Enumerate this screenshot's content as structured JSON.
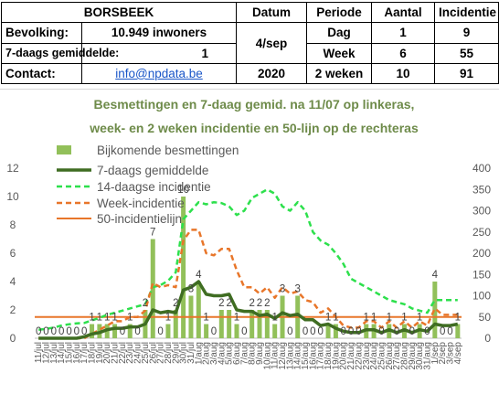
{
  "header": {
    "town": "BORSBEEK",
    "col_datum": "Datum",
    "col_periode": "Periode",
    "col_aantal": "Aantal",
    "col_incidentie": "Incidentie",
    "bevolking_label": "Bevolking:",
    "bevolking_value": "10.949 inwoners",
    "gemiddelde_label": "7-daags gemiddelde:",
    "gemiddelde_value": "1",
    "contact_label": "Contact:",
    "contact_value": "info@npdata.be",
    "datum_value": "4/sep",
    "year_value": "2020",
    "rows": [
      {
        "periode": "Dag",
        "aantal": "1",
        "incidentie": "9"
      },
      {
        "periode": "Week",
        "aantal": "6",
        "incidentie": "55"
      },
      {
        "periode": "2 weken",
        "aantal": "10",
        "incidentie": "91"
      }
    ]
  },
  "chart_data": {
    "type": "bar",
    "title_line1": "Besmettingen en 7-daag gemid. na 11/07 op linkeras,",
    "title_line2": "week- en 2 weken incidentie en 50-lijn op de rechteras",
    "legend": {
      "bars": "Bijkomende besmettingen",
      "avg7": "7-daags gemiddelde",
      "inc14": "14-daagse incidentie",
      "inc7": "Week-incidentie",
      "line50": "50-incidentielijn"
    },
    "y_left": {
      "min": 0,
      "max": 12,
      "ticks": [
        "0",
        "2",
        "4",
        "6",
        "8",
        "10",
        "12"
      ]
    },
    "y_right": {
      "min": 0,
      "max": 400,
      "ticks": [
        "0",
        "50",
        "100",
        "150",
        "200",
        "250",
        "300",
        "350",
        "400"
      ]
    },
    "categories": [
      "11/jul",
      "12/jul",
      "13/jul",
      "14/jul",
      "15/jul",
      "16/jul",
      "17/jul",
      "18/jul",
      "19/jul",
      "20/jul",
      "21/jul",
      "22/jul",
      "23/jul",
      "24/jul",
      "25/jul",
      "26/jul",
      "27/jul",
      "28/jul",
      "29/jul",
      "30/jul",
      "31/jul",
      "1/aug",
      "2/aug",
      "3/aug",
      "4/aug",
      "5/aug",
      "6/aug",
      "7/aug",
      "8/aug",
      "9/aug",
      "10/aug",
      "11/aug",
      "12/aug",
      "13/aug",
      "14/aug",
      "15/aug",
      "16/aug",
      "17/aug",
      "18/aug",
      "19/aug",
      "20/aug",
      "21/aug",
      "22/aug",
      "23/aug",
      "24/aug",
      "25/aug",
      "26/aug",
      "27/aug",
      "28/aug",
      "29/aug",
      "30/aug",
      "31/aug",
      "1/sep",
      "2/sep",
      "3/sep",
      "4/sep"
    ],
    "series": [
      {
        "name": "Bijkomende besmettingen",
        "axis": "left",
        "values": [
          0,
          0,
          0,
          0,
          0,
          0,
          0,
          1,
          1,
          1,
          1,
          0,
          1,
          0,
          2,
          7,
          0,
          1,
          2,
          10,
          3,
          4,
          1,
          0,
          2,
          2,
          1,
          0,
          2,
          2,
          2,
          1,
          3,
          0,
          3,
          0,
          0,
          0,
          1,
          1,
          0,
          0,
          0,
          1,
          1,
          0,
          1,
          0,
          1,
          0,
          1,
          0,
          4,
          0,
          0,
          1
        ],
        "labels": [
          "0",
          "0",
          "0",
          "0",
          "0",
          "0",
          "0",
          "1",
          "1",
          "1",
          "1",
          "0",
          "1",
          "0",
          "2",
          "7",
          "0",
          "1",
          "2",
          "10",
          "3",
          "4",
          "1",
          "0",
          "2",
          "2",
          "1",
          "0",
          "2",
          "2",
          "2",
          "1",
          "3",
          "0",
          "3",
          "0",
          "0",
          "0",
          "1",
          "1",
          "0",
          "0",
          "0",
          "1",
          "1",
          "0",
          "1",
          "0",
          "1",
          "0",
          "1",
          "0",
          "4",
          "0",
          "0",
          "1"
        ]
      },
      {
        "name": "7-daags gemiddelde",
        "axis": "left",
        "values": [
          0,
          0,
          0,
          0,
          0,
          0,
          0.1,
          0.3,
          0.4,
          0.6,
          0.7,
          0.7,
          0.8,
          0.8,
          1.0,
          2.0,
          1.8,
          1.9,
          1.8,
          3.4,
          3.6,
          4.0,
          3.1,
          3.0,
          3.0,
          3.1,
          2.0,
          1.9,
          1.9,
          1.6,
          1.7,
          1.4,
          1.8,
          1.6,
          1.7,
          1.3,
          1.3,
          0.9,
          1.0,
          0.7,
          0.5,
          0.4,
          0.4,
          0.6,
          0.6,
          0.4,
          0.6,
          0.4,
          0.6,
          0.4,
          0.6,
          0.5,
          1.0,
          0.9,
          0.9,
          1.0
        ]
      },
      {
        "name": "14-daagse incidentie",
        "axis": "right",
        "values": [
          20,
          22,
          25,
          30,
          33,
          35,
          36,
          42,
          48,
          55,
          60,
          65,
          70,
          75,
          80,
          120,
          125,
          135,
          155,
          280,
          300,
          320,
          315,
          320,
          318,
          310,
          290,
          300,
          330,
          340,
          350,
          340,
          310,
          300,
          320,
          300,
          250,
          230,
          220,
          200,
          175,
          140,
          130,
          120,
          110,
          100,
          90,
          85,
          80,
          70,
          65,
          60,
          90,
          90,
          90,
          90
        ]
      },
      {
        "name": "Week-incidentie",
        "axis": "right",
        "values": [
          0,
          0,
          0,
          0,
          0,
          0,
          0,
          10,
          20,
          30,
          40,
          40,
          50,
          50,
          65,
          130,
          120,
          125,
          120,
          230,
          255,
          255,
          200,
          195,
          210,
          210,
          160,
          120,
          120,
          105,
          120,
          95,
          120,
          105,
          110,
          90,
          85,
          60,
          70,
          50,
          30,
          25,
          25,
          40,
          40,
          25,
          40,
          25,
          40,
          25,
          40,
          30,
          70,
          55,
          55,
          55
        ]
      },
      {
        "name": "50-incidentielijn",
        "axis": "right",
        "value": 50
      }
    ],
    "colors": {
      "bars": "#92c05a",
      "avg7": "#3f6d22",
      "inc14": "#2de04c",
      "inc7": "#e8762a",
      "line50": "#e8762a",
      "title": "#6e8b4a"
    }
  }
}
